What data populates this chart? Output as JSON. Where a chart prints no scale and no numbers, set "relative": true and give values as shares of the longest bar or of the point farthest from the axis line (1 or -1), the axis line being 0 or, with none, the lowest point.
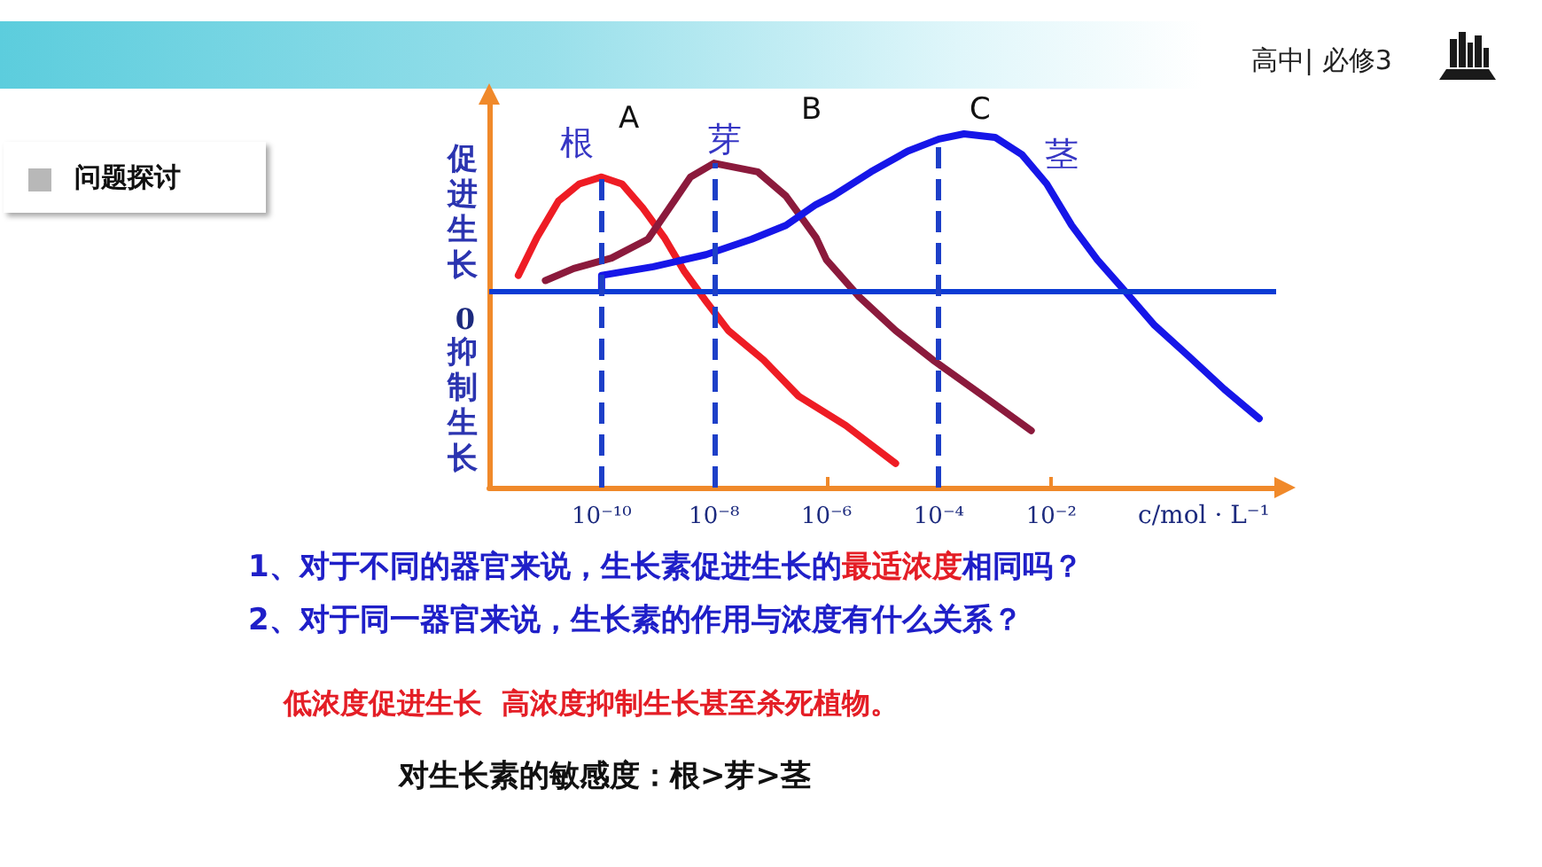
{
  "chart_data": {
    "type": "line",
    "title": "问题探讨",
    "xlabel": "c/mol · L⁻¹",
    "ylabel": "促进生长",
    "relative": true,
    "log": "x",
    "xlim": [
      1e-12,
      100
    ],
    "xticks": [
      {
        "value": 1e-10,
        "label": "10⁻¹⁰"
      },
      {
        "value": 1e-08,
        "label": "10⁻⁸"
      },
      {
        "value": 1e-06,
        "label": "10⁻⁶"
      },
      {
        "value": 0.0001,
        "label": "10⁻⁴"
      },
      {
        "value": 0.01,
        "label": "10⁻²"
      }
    ],
    "marker": "none",
    "line_style": "solid",
    "ref_lines": [
      {
        "axis": "y",
        "value": 0,
        "label": "0",
        "color": "#0b3bd4"
      },
      {
        "axis": "x",
        "value": 1e-10,
        "color": "#1d3fc8",
        "line_style": "dashed"
      },
      {
        "axis": "x",
        "value": 1e-08,
        "color": "#1d3fc8",
        "line_style": "dashed"
      },
      {
        "axis": "x",
        "value": 0.0001,
        "color": "#1d3fc8",
        "line_style": "dashed"
      }
    ],
    "series": [
      {
        "name": "根",
        "color": "#ee1c24",
        "x": [
          3.3e-12,
          7.1e-12,
          1.7e-11,
          4e-11,
          1e-10,
          2.3e-10,
          5.4e-10,
          1.3e-09,
          3e-09,
          7.2e-09,
          1.8e-08,
          7.6e-08,
          3.2e-07,
          2.2e-06,
          1.7e-05
        ],
        "values": [
          0.09,
          0.31,
          0.52,
          0.62,
          0.66,
          0.62,
          0.48,
          0.31,
          0.11,
          -0.06,
          -0.23,
          -0.4,
          -0.61,
          -0.78,
          -1
        ]
      },
      {
        "name": "芽",
        "color": "#8b1a3c",
        "x": [
          1e-11,
          3.2e-11,
          1.5e-10,
          6.7e-10,
          1.6e-09,
          3.8e-09,
          1e-08,
          6e-08,
          1.9e-07,
          6.5e-07,
          1e-06,
          3.7e-06,
          1.7e-05,
          7.8e-05,
          0.00062,
          0.0044
        ],
        "values": [
          0.06,
          0.13,
          0.19,
          0.3,
          0.48,
          0.66,
          0.74,
          0.69,
          0.55,
          0.31,
          0.18,
          -0.03,
          -0.23,
          -0.4,
          -0.61,
          -0.81
        ]
      },
      {
        "name": "茎",
        "color": "#1616e8",
        "x": [
          1e-10,
          1e-10,
          8.3e-10,
          7.2e-09,
          4.7e-08,
          1.9e-07,
          6.5e-07,
          1.3e-06,
          6.2e-06,
          2.8e-05,
          0.0001,
          0.00028,
          0.001,
          0.003,
          0.0083,
          0.023,
          0.066,
          0.19,
          0.69,
          2.6,
          12,
          50
        ],
        "values": [
          0,
          0.09,
          0.14,
          0.21,
          0.3,
          0.38,
          0.5,
          0.55,
          0.69,
          0.81,
          0.88,
          0.91,
          0.89,
          0.79,
          0.62,
          0.38,
          0.18,
          0.01,
          -0.2,
          -0.37,
          -0.57,
          -0.74
        ]
      }
    ],
    "annotations": [
      "高中| 必修3",
      "1、对于不同的器官来说，生长素促进生长的",
      "最适浓度",
      "相同吗？",
      "2、对于同一器官来说，生长素的作用与浓度有什么关系？",
      "低浓度促进生长  高浓度抑制生长甚至杀死植物。",
      "对生长素的敏感度：根>芽>茎",
      "抑制生长",
      "A",
      "B",
      "C"
    ]
  }
}
